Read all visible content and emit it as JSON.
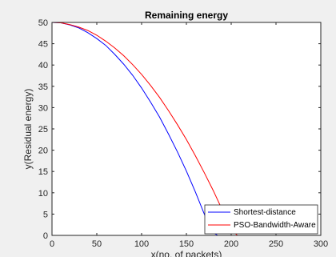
{
  "chart_data": {
    "type": "line",
    "title": "Remaining energy",
    "xlabel": "x(no. of packets)",
    "ylabel": "y(Residual energy)",
    "xlim": [
      0,
      300
    ],
    "ylim": [
      0,
      50
    ],
    "xticks": [
      0,
      50,
      100,
      150,
      200,
      250,
      300
    ],
    "yticks": [
      0,
      5,
      10,
      15,
      20,
      25,
      30,
      35,
      40,
      45,
      50
    ],
    "grid": false,
    "legend_position": "bottom-right",
    "series": [
      {
        "name": "Shortest-distance",
        "color": "#0000ff",
        "x": [
          0,
          10,
          20,
          30,
          40,
          50,
          60,
          70,
          80,
          90,
          100,
          110,
          120,
          130,
          140,
          150,
          160,
          170,
          180,
          185
        ],
        "y": [
          50,
          49.9,
          49.4,
          48.7,
          47.6,
          46.2,
          44.6,
          42.5,
          40.2,
          37.6,
          34.6,
          31.3,
          27.8,
          23.8,
          19.6,
          15.1,
          10.2,
          5.0,
          0.6,
          0
        ]
      },
      {
        "name": "PSO-Bandwidth-Aware",
        "color": "#ff0000",
        "x": [
          0,
          10,
          20,
          30,
          40,
          50,
          60,
          70,
          80,
          90,
          100,
          110,
          120,
          130,
          140,
          150,
          160,
          170,
          180,
          190,
          200,
          207
        ],
        "y": [
          50,
          49.9,
          49.5,
          48.9,
          48.1,
          47.0,
          45.6,
          44.0,
          42.2,
          40.1,
          37.8,
          35.2,
          32.4,
          29.3,
          26.0,
          22.5,
          18.7,
          14.7,
          10.5,
          6.0,
          1.3,
          0
        ]
      }
    ]
  }
}
